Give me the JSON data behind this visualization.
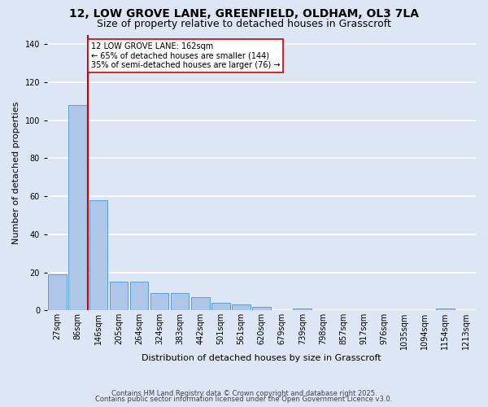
{
  "title1": "12, LOW GROVE LANE, GREENFIELD, OLDHAM, OL3 7LA",
  "title2": "Size of property relative to detached houses in Grasscroft",
  "xlabel": "Distribution of detached houses by size in Grasscroft",
  "ylabel": "Number of detached properties",
  "categories": [
    "27sqm",
    "86sqm",
    "146sqm",
    "205sqm",
    "264sqm",
    "324sqm",
    "383sqm",
    "442sqm",
    "501sqm",
    "561sqm",
    "620sqm",
    "679sqm",
    "739sqm",
    "798sqm",
    "857sqm",
    "917sqm",
    "976sqm",
    "1035sqm",
    "1094sqm",
    "1154sqm",
    "1213sqm"
  ],
  "values": [
    19,
    108,
    58,
    15,
    15,
    9,
    9,
    7,
    4,
    3,
    2,
    0,
    1,
    0,
    0,
    0,
    0,
    0,
    0,
    1,
    0
  ],
  "bar_color": "#aec6e8",
  "bar_edge_color": "#5a9fd4",
  "reference_line_color": "#cc0000",
  "annotation_text": "12 LOW GROVE LANE: 162sqm\n← 65% of detached houses are smaller (144)\n35% of semi-detached houses are larger (76) →",
  "annotation_box_color": "white",
  "annotation_box_edge_color": "#cc0000",
  "background_color": "#dce6f5",
  "grid_color": "white",
  "footer1": "Contains HM Land Registry data © Crown copyright and database right 2025.",
  "footer2": "Contains public sector information licensed under the Open Government Licence v3.0.",
  "ylim": [
    0,
    145
  ],
  "yticks": [
    0,
    20,
    40,
    60,
    80,
    100,
    120,
    140
  ],
  "title1_fontsize": 10,
  "title2_fontsize": 9,
  "ylabel_fontsize": 8,
  "xlabel_fontsize": 8,
  "tick_fontsize": 7,
  "footer_fontsize": 6
}
